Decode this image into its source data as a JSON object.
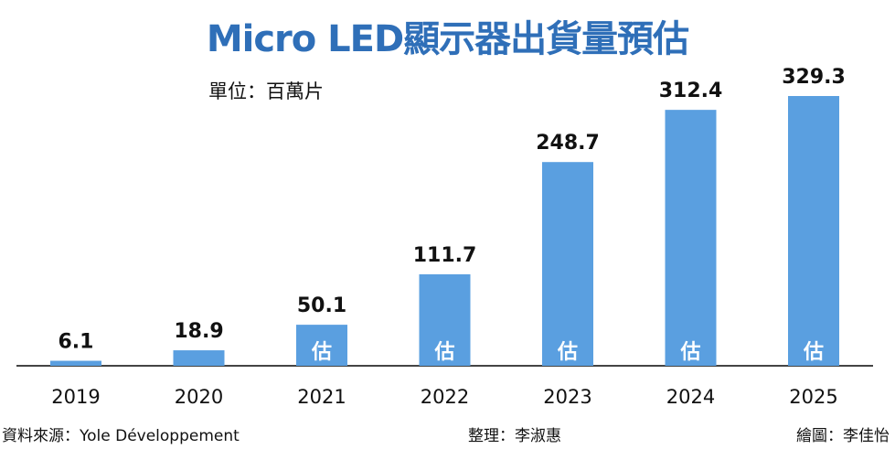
{
  "title": "Micro LED顯示器出貨量預估",
  "unit": "單位：百萬片",
  "estimate_label": "估",
  "footer": {
    "source": "資料來源：Yole Développement",
    "editor": "整理：李淑惠",
    "drawer": "繪圖：李佳怡"
  },
  "colors": {
    "bar": "#5a9fe0",
    "title": "#2f6fb8",
    "axis": "#444444"
  },
  "chart_data": {
    "type": "bar",
    "title": "Micro LED顯示器出貨量預估",
    "xlabel": "",
    "ylabel": "",
    "unit": "百萬片",
    "categories": [
      "2019",
      "2020",
      "2021",
      "2022",
      "2023",
      "2024",
      "2025"
    ],
    "values": [
      6.1,
      18.9,
      50.1,
      111.7,
      248.7,
      312.4,
      329.3
    ],
    "value_labels": [
      "6.1",
      "18.9",
      "50.1",
      "111.7",
      "248.7",
      "312.4",
      "329.3"
    ],
    "estimated": [
      false,
      false,
      true,
      true,
      true,
      true,
      true
    ],
    "ylim": [
      0,
      329.3
    ],
    "grid": false,
    "legend": "none"
  }
}
